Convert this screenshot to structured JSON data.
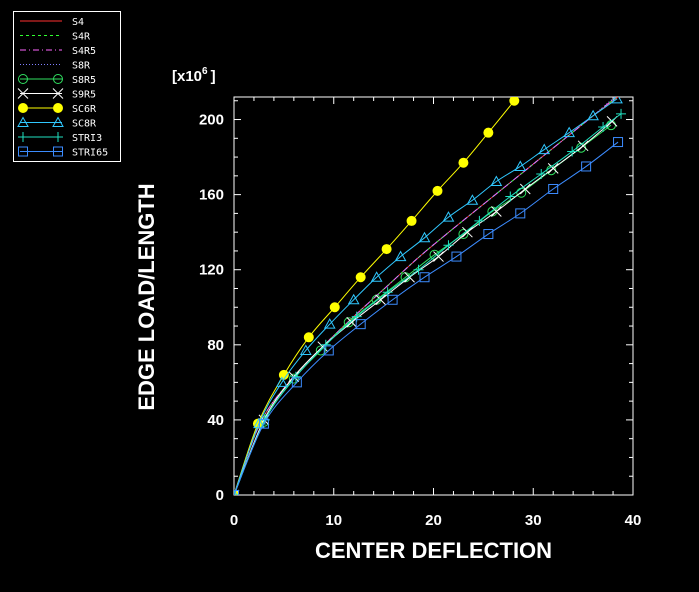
{
  "chart_data": {
    "type": "line",
    "xlabel": "CENTER DEFLECTION",
    "ylabel": "EDGE LOAD/LENGTH",
    "y_multiplier_label": "[x10",
    "y_multiplier_exp": "6",
    "y_multiplier_close": "]",
    "xlim": [
      0,
      40
    ],
    "ylim": [
      0,
      212
    ],
    "x_ticks": [
      0,
      10,
      20,
      30,
      40
    ],
    "y_ticks": [
      0,
      40,
      80,
      120,
      160,
      200
    ],
    "grid": false,
    "legend_placement": "top-left outside",
    "series": [
      {
        "name": "S4",
        "color": "#ff3030",
        "dash": "",
        "marker": "none",
        "x": [
          0,
          2.6,
          5.5,
          8.7,
          12,
          15.3,
          18.6,
          22,
          25.5,
          29,
          32.5,
          36,
          39.5
        ],
        "y": [
          0,
          38,
          60,
          78,
          95,
          111,
          127,
          142,
          157,
          172,
          187,
          202,
          216
        ]
      },
      {
        "name": "S4R",
        "color": "#30ff30",
        "dash": "3,3",
        "marker": "none",
        "x": [
          0,
          2.6,
          5.5,
          8.7,
          12,
          15.3,
          18.6,
          22,
          25.5,
          29,
          32.5,
          36,
          39.3
        ],
        "y": [
          0,
          38,
          60,
          78,
          95,
          111,
          127,
          142,
          157,
          172,
          187,
          202,
          216
        ]
      },
      {
        "name": "S4R5",
        "color": "#ff66ff",
        "dash": "6,3,1,3",
        "marker": "none",
        "x": [
          0,
          2.6,
          5.5,
          8.7,
          12,
          15.3,
          18.6,
          22,
          25.5,
          29,
          32.5,
          36,
          39.2
        ],
        "y": [
          0,
          38,
          60,
          78,
          95,
          111,
          127,
          142,
          157,
          172,
          187,
          202,
          216
        ]
      },
      {
        "name": "S8R",
        "color": "#8080ff",
        "dash": "1,2",
        "marker": "none",
        "x": [
          0,
          2.6,
          5.5,
          8.7,
          12,
          15.3,
          18.6,
          22,
          25.5,
          29,
          32.5,
          36,
          39.0
        ],
        "y": [
          0,
          38,
          60,
          78,
          95,
          111,
          127,
          142,
          157,
          172,
          187,
          202,
          216
        ]
      },
      {
        "name": "S8R5",
        "color": "#30e060",
        "dash": "",
        "marker": "circle",
        "x": [
          0,
          3.0,
          6.0,
          8.7,
          11.5,
          14.3,
          17.2,
          20.1,
          23.0,
          25.9,
          28.8,
          31.8,
          34.8,
          37.8
        ],
        "y": [
          0,
          39,
          62,
          77,
          92,
          104,
          116,
          128,
          139,
          151,
          161,
          173,
          185,
          197
        ]
      },
      {
        "name": "S9R5",
        "color": "#ffffff",
        "dash": "",
        "marker": "x",
        "x": [
          0,
          3.0,
          6.0,
          8.9,
          11.8,
          14.7,
          17.6,
          20.5,
          23.4,
          26.3,
          29.2,
          32.0,
          35.0,
          37.9
        ],
        "y": [
          0,
          40,
          63,
          79,
          92,
          104,
          116,
          127,
          140,
          151,
          163,
          174,
          186,
          199
        ]
      },
      {
        "name": "SC6R",
        "color": "#ffff00",
        "dash": "",
        "marker": "filled-circle",
        "x": [
          0,
          2.4,
          5.0,
          7.5,
          10.1,
          12.7,
          15.3,
          17.8,
          20.4,
          23.0,
          25.5,
          28.1
        ],
        "y": [
          0,
          38,
          64,
          84,
          100,
          116,
          131,
          146,
          162,
          177,
          193,
          210
        ]
      },
      {
        "name": "SC8R",
        "color": "#30c8ff",
        "dash": "",
        "marker": "triangle",
        "x": [
          0,
          2.5,
          4.8,
          7.2,
          9.6,
          12.0,
          14.3,
          16.7,
          19.1,
          21.5,
          23.9,
          26.3,
          28.7,
          31.1,
          33.6,
          36.0,
          38.4
        ],
        "y": [
          0,
          38,
          60,
          77,
          91,
          104,
          116,
          127,
          137,
          148,
          157,
          167,
          175,
          184,
          193,
          202,
          211
        ]
      },
      {
        "name": "STRI3",
        "color": "#20e0c0",
        "dash": "",
        "marker": "plus",
        "x": [
          0,
          3.1,
          6.2,
          9.2,
          12.3,
          15.4,
          18.5,
          21.5,
          24.6,
          27.7,
          30.8,
          33.9,
          37.0,
          38.8
        ],
        "y": [
          0,
          40,
          63,
          80,
          95,
          108,
          120,
          133,
          146,
          159,
          171,
          183,
          196,
          203
        ]
      },
      {
        "name": "STRI65",
        "color": "#3c8cff",
        "dash": "",
        "marker": "square",
        "x": [
          0,
          3.0,
          6.3,
          9.5,
          12.7,
          15.9,
          19.1,
          22.3,
          25.5,
          28.7,
          32.0,
          35.3,
          38.5
        ],
        "y": [
          0,
          38,
          60,
          77,
          91,
          104,
          116,
          127,
          139,
          150,
          163,
          175,
          188
        ]
      }
    ]
  }
}
